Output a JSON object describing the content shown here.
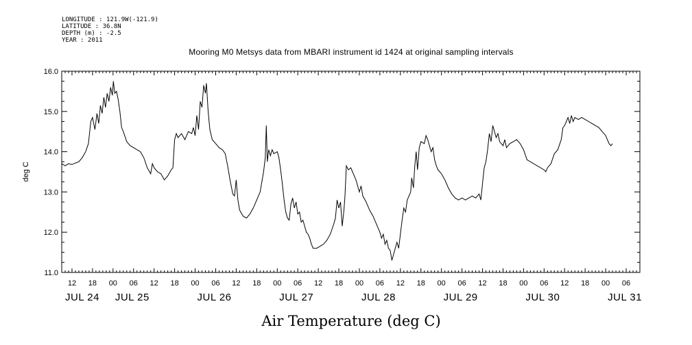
{
  "metadata": {
    "longitude": "LONGITUDE : 121.9W(-121.9)",
    "latitude": "LATITUDE : 36.8N",
    "depth": "DEPTH (m) : -2.5",
    "year": "YEAR : 2011"
  },
  "chart_data": {
    "type": "line",
    "title": "Mooring M0 Metsys data from MBARI instrument id 1424 at original sampling intervals",
    "xlabel": "Air Temperature (deg C)",
    "ylabel": "deg C",
    "ylim": [
      11.0,
      16.0
    ],
    "y_ticks": [
      "11.0",
      "12.0",
      "13.0",
      "14.0",
      "15.0",
      "16.0"
    ],
    "x_range_hours": [
      9,
      178
    ],
    "hour_ticks": [
      {
        "h": 12,
        "label": "12"
      },
      {
        "h": 18,
        "label": "18"
      },
      {
        "h": 24,
        "label": "00"
      },
      {
        "h": 30,
        "label": "06"
      },
      {
        "h": 36,
        "label": "12"
      },
      {
        "h": 42,
        "label": "18"
      },
      {
        "h": 48,
        "label": "00"
      },
      {
        "h": 54,
        "label": "06"
      },
      {
        "h": 60,
        "label": "12"
      },
      {
        "h": 66,
        "label": "18"
      },
      {
        "h": 72,
        "label": "00"
      },
      {
        "h": 78,
        "label": "06"
      },
      {
        "h": 84,
        "label": "12"
      },
      {
        "h": 90,
        "label": "18"
      },
      {
        "h": 96,
        "label": "00"
      },
      {
        "h": 102,
        "label": "06"
      },
      {
        "h": 108,
        "label": "12"
      },
      {
        "h": 114,
        "label": "18"
      },
      {
        "h": 120,
        "label": "00"
      },
      {
        "h": 126,
        "label": "06"
      },
      {
        "h": 132,
        "label": "12"
      },
      {
        "h": 138,
        "label": "18"
      },
      {
        "h": 144,
        "label": "00"
      },
      {
        "h": 150,
        "label": "06"
      },
      {
        "h": 156,
        "label": "12"
      },
      {
        "h": 162,
        "label": "18"
      },
      {
        "h": 168,
        "label": "00"
      },
      {
        "h": 174,
        "label": "06"
      }
    ],
    "day_labels": [
      {
        "h": 0,
        "label": "JUL 24"
      },
      {
        "h": 24,
        "label": "JUL 25"
      },
      {
        "h": 48,
        "label": "JUL 26"
      },
      {
        "h": 72,
        "label": "JUL 27"
      },
      {
        "h": 96,
        "label": "JUL 28"
      },
      {
        "h": 120,
        "label": "JUL 29"
      },
      {
        "h": 144,
        "label": "JUL 30"
      },
      {
        "h": 168,
        "label": "JUL 31"
      }
    ],
    "series": [
      {
        "points": [
          [
            9.0,
            13.7
          ],
          [
            10.0,
            13.65
          ],
          [
            11.0,
            13.7
          ],
          [
            12.0,
            13.68
          ],
          [
            13.0,
            13.72
          ],
          [
            14.0,
            13.75
          ],
          [
            15.0,
            13.85
          ],
          [
            16.0,
            14.0
          ],
          [
            16.8,
            14.2
          ],
          [
            17.5,
            14.75
          ],
          [
            18.0,
            14.85
          ],
          [
            18.7,
            14.55
          ],
          [
            19.3,
            14.95
          ],
          [
            19.8,
            14.7
          ],
          [
            20.3,
            15.15
          ],
          [
            20.8,
            14.95
          ],
          [
            21.3,
            15.35
          ],
          [
            21.8,
            15.1
          ],
          [
            22.3,
            15.45
          ],
          [
            22.8,
            15.25
          ],
          [
            23.3,
            15.6
          ],
          [
            23.8,
            15.4
          ],
          [
            24.1,
            15.75
          ],
          [
            24.5,
            15.45
          ],
          [
            25.0,
            15.5
          ],
          [
            25.5,
            15.3
          ],
          [
            26.0,
            15.0
          ],
          [
            26.5,
            14.6
          ],
          [
            27.0,
            14.5
          ],
          [
            28.0,
            14.25
          ],
          [
            29.0,
            14.15
          ],
          [
            30.0,
            14.1
          ],
          [
            31.0,
            14.05
          ],
          [
            32.0,
            14.0
          ],
          [
            33.0,
            13.85
          ],
          [
            34.0,
            13.6
          ],
          [
            35.0,
            13.45
          ],
          [
            35.5,
            13.7
          ],
          [
            36.0,
            13.6
          ],
          [
            37.0,
            13.5
          ],
          [
            38.0,
            13.45
          ],
          [
            39.0,
            13.3
          ],
          [
            40.0,
            13.4
          ],
          [
            41.0,
            13.55
          ],
          [
            41.5,
            13.6
          ],
          [
            42.0,
            14.3
          ],
          [
            42.5,
            14.45
          ],
          [
            43.0,
            14.35
          ],
          [
            44.0,
            14.45
          ],
          [
            45.0,
            14.3
          ],
          [
            46.0,
            14.5
          ],
          [
            47.0,
            14.45
          ],
          [
            47.5,
            14.6
          ],
          [
            48.0,
            14.4
          ],
          [
            48.5,
            14.9
          ],
          [
            49.0,
            14.55
          ],
          [
            49.5,
            15.25
          ],
          [
            50.0,
            15.1
          ],
          [
            50.5,
            15.65
          ],
          [
            51.0,
            15.45
          ],
          [
            51.3,
            15.7
          ],
          [
            51.8,
            15.0
          ],
          [
            52.3,
            14.55
          ],
          [
            53.0,
            14.3
          ],
          [
            54.0,
            14.2
          ],
          [
            55.0,
            14.1
          ],
          [
            56.0,
            14.05
          ],
          [
            56.8,
            13.95
          ],
          [
            57.5,
            13.65
          ],
          [
            58.2,
            13.3
          ],
          [
            59.0,
            12.95
          ],
          [
            59.5,
            12.9
          ],
          [
            60.0,
            13.3
          ],
          [
            60.5,
            12.8
          ],
          [
            61.0,
            12.55
          ],
          [
            62.0,
            12.4
          ],
          [
            63.0,
            12.35
          ],
          [
            64.0,
            12.45
          ],
          [
            65.0,
            12.6
          ],
          [
            66.0,
            12.8
          ],
          [
            67.0,
            13.0
          ],
          [
            68.0,
            13.5
          ],
          [
            68.5,
            13.85
          ],
          [
            68.8,
            14.65
          ],
          [
            69.1,
            13.75
          ],
          [
            69.5,
            14.05
          ],
          [
            70.0,
            13.9
          ],
          [
            70.5,
            14.05
          ],
          [
            71.0,
            13.95
          ],
          [
            72.0,
            14.0
          ],
          [
            72.5,
            13.85
          ],
          [
            73.0,
            13.55
          ],
          [
            73.5,
            13.2
          ],
          [
            74.0,
            12.8
          ],
          [
            74.5,
            12.5
          ],
          [
            75.0,
            12.35
          ],
          [
            75.5,
            12.3
          ],
          [
            76.0,
            12.7
          ],
          [
            76.5,
            12.85
          ],
          [
            77.0,
            12.6
          ],
          [
            77.5,
            12.75
          ],
          [
            78.0,
            12.45
          ],
          [
            78.5,
            12.5
          ],
          [
            79.0,
            12.25
          ],
          [
            79.5,
            12.3
          ],
          [
            80.0,
            12.15
          ],
          [
            80.5,
            12.0
          ],
          [
            81.0,
            11.95
          ],
          [
            81.5,
            11.85
          ],
          [
            82.0,
            11.7
          ],
          [
            82.5,
            11.6
          ],
          [
            83.5,
            11.6
          ],
          [
            84.5,
            11.65
          ],
          [
            85.5,
            11.7
          ],
          [
            86.5,
            11.8
          ],
          [
            87.5,
            11.95
          ],
          [
            88.5,
            12.2
          ],
          [
            89.0,
            12.35
          ],
          [
            89.5,
            12.8
          ],
          [
            90.0,
            12.6
          ],
          [
            90.5,
            12.75
          ],
          [
            91.0,
            12.15
          ],
          [
            91.5,
            12.55
          ],
          [
            91.8,
            12.9
          ],
          [
            92.2,
            13.65
          ],
          [
            92.8,
            13.55
          ],
          [
            93.5,
            13.6
          ],
          [
            94.0,
            13.5
          ],
          [
            95.0,
            13.3
          ],
          [
            96.0,
            13.0
          ],
          [
            96.5,
            13.15
          ],
          [
            97.0,
            12.9
          ],
          [
            98.0,
            12.75
          ],
          [
            99.0,
            12.55
          ],
          [
            100.0,
            12.4
          ],
          [
            101.0,
            12.2
          ],
          [
            102.0,
            12.0
          ],
          [
            102.5,
            11.85
          ],
          [
            103.0,
            11.95
          ],
          [
            103.5,
            11.7
          ],
          [
            104.0,
            11.8
          ],
          [
            104.5,
            11.6
          ],
          [
            105.0,
            11.55
          ],
          [
            105.5,
            11.3
          ],
          [
            106.0,
            11.45
          ],
          [
            106.5,
            11.6
          ],
          [
            107.0,
            11.75
          ],
          [
            107.5,
            11.6
          ],
          [
            108.0,
            11.95
          ],
          [
            108.5,
            12.3
          ],
          [
            109.0,
            12.6
          ],
          [
            109.5,
            12.5
          ],
          [
            110.0,
            12.8
          ],
          [
            110.5,
            12.9
          ],
          [
            111.0,
            13.0
          ],
          [
            111.3,
            13.35
          ],
          [
            111.8,
            13.1
          ],
          [
            112.2,
            13.65
          ],
          [
            112.6,
            14.0
          ],
          [
            113.0,
            13.55
          ],
          [
            113.5,
            14.1
          ],
          [
            114.0,
            14.25
          ],
          [
            115.0,
            14.2
          ],
          [
            115.5,
            14.4
          ],
          [
            116.0,
            14.3
          ],
          [
            116.5,
            14.15
          ],
          [
            117.0,
            14.0
          ],
          [
            117.5,
            14.1
          ],
          [
            118.0,
            13.8
          ],
          [
            118.5,
            13.65
          ],
          [
            119.0,
            13.55
          ],
          [
            120.0,
            13.45
          ],
          [
            121.0,
            13.3
          ],
          [
            122.0,
            13.1
          ],
          [
            123.0,
            12.95
          ],
          [
            124.0,
            12.85
          ],
          [
            125.0,
            12.8
          ],
          [
            126.0,
            12.85
          ],
          [
            127.0,
            12.8
          ],
          [
            128.0,
            12.85
          ],
          [
            129.0,
            12.9
          ],
          [
            130.0,
            12.85
          ],
          [
            131.0,
            12.95
          ],
          [
            131.5,
            12.8
          ],
          [
            132.0,
            13.2
          ],
          [
            132.5,
            13.6
          ],
          [
            133.0,
            13.75
          ],
          [
            133.5,
            14.05
          ],
          [
            134.0,
            14.45
          ],
          [
            134.5,
            14.25
          ],
          [
            135.0,
            14.65
          ],
          [
            135.5,
            14.5
          ],
          [
            136.0,
            14.35
          ],
          [
            136.5,
            14.45
          ],
          [
            137.0,
            14.25
          ],
          [
            138.0,
            14.15
          ],
          [
            138.5,
            14.3
          ],
          [
            139.0,
            14.1
          ],
          [
            140.0,
            14.2
          ],
          [
            141.0,
            14.25
          ],
          [
            142.0,
            14.3
          ],
          [
            143.0,
            14.2
          ],
          [
            144.0,
            14.05
          ],
          [
            145.0,
            13.8
          ],
          [
            150.0,
            13.55
          ],
          [
            150.5,
            13.5
          ],
          [
            151.0,
            13.6
          ],
          [
            152.0,
            13.7
          ],
          [
            153.0,
            13.95
          ],
          [
            154.0,
            14.05
          ],
          [
            155.0,
            14.3
          ],
          [
            155.5,
            14.6
          ],
          [
            156.0,
            14.65
          ],
          [
            156.5,
            14.75
          ],
          [
            157.0,
            14.85
          ],
          [
            157.5,
            14.7
          ],
          [
            158.0,
            14.9
          ],
          [
            158.5,
            14.75
          ],
          [
            159.0,
            14.85
          ],
          [
            160.0,
            14.8
          ],
          [
            161.0,
            14.85
          ],
          [
            162.0,
            14.8
          ],
          [
            163.0,
            14.75
          ],
          [
            164.0,
            14.7
          ],
          [
            165.0,
            14.65
          ],
          [
            166.0,
            14.6
          ],
          [
            167.0,
            14.5
          ],
          [
            168.0,
            14.4
          ],
          [
            169.0,
            14.2
          ],
          [
            169.5,
            14.15
          ],
          [
            170.0,
            14.2
          ]
        ]
      }
    ]
  }
}
